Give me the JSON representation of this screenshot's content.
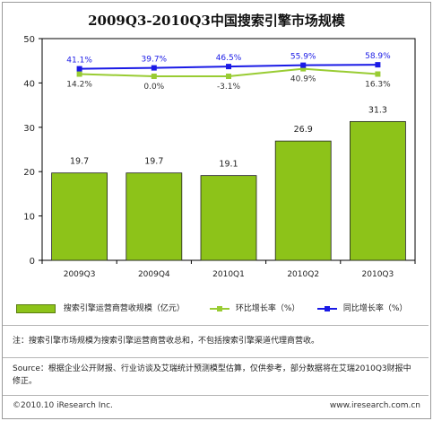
{
  "chart_data": {
    "type": "bar",
    "title": "2009Q3-2010Q3中国搜索引擎市场规模",
    "categories": [
      "2009Q3",
      "2009Q4",
      "2010Q1",
      "2010Q2",
      "2010Q3"
    ],
    "ylim": [
      0,
      50
    ],
    "yticks": [
      0,
      10,
      20,
      30,
      40,
      50
    ],
    "grid": false,
    "series": [
      {
        "name": "搜索引擎运营商营收规模（亿元）",
        "kind": "bar",
        "values": [
          19.7,
          19.7,
          19.1,
          26.9,
          31.3
        ],
        "labels": [
          "19.7",
          "19.7",
          "19.1",
          "26.9",
          "31.3"
        ],
        "color": "#8dc319"
      },
      {
        "name": "环比增长率（%）",
        "kind": "line",
        "plot_values": [
          42.0,
          41.5,
          41.5,
          43.2,
          42.0
        ],
        "labels": [
          "14.2%",
          "0.0%",
          "-3.1%",
          "40.9%",
          "16.3%"
        ],
        "color": "#99cc33"
      },
      {
        "name": "同比增长率（%）",
        "kind": "line",
        "plot_values": [
          43.2,
          43.4,
          43.7,
          44.0,
          44.1
        ],
        "labels": [
          "41.1%",
          "39.7%",
          "46.5%",
          "55.9%",
          "58.9%"
        ],
        "color": "#1a1ae6"
      }
    ]
  },
  "note": "注：搜索引擎市场规模为搜索引擎运营商营收总和，不包括搜索引擎渠道代理商营收。",
  "source": "Source：根据企业公开财报、行业访谈及艾瑞统计预测模型估算，仅供参考，部分数据将在艾瑞2010Q3财报中修正。",
  "footer_left": "©2010.10  iResearch Inc.",
  "footer_right": "www.iresearch.com.cn"
}
